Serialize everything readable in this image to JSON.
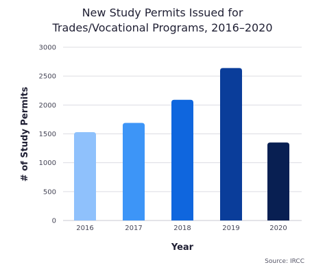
{
  "chart_data": {
    "type": "bar",
    "title_line1": "New Study Permits Issued for",
    "title_line2": "Trades/Vocational Programs, 2016–2020",
    "categories": [
      "2016",
      "2017",
      "2018",
      "2019",
      "2020"
    ],
    "values": [
      1530,
      1690,
      2090,
      2640,
      1350
    ],
    "colors": [
      "#8fc1fc",
      "#3d95f7",
      "#0f66de",
      "#0a3d9a",
      "#081f52"
    ],
    "xlabel": "Year",
    "ylabel": "# of Study Permits",
    "ylim": [
      0,
      3000
    ],
    "yticks": [
      "0",
      "500",
      "1000",
      "1500",
      "2000",
      "2500",
      "3000"
    ],
    "grid": true,
    "source": "Source: IRCC"
  }
}
